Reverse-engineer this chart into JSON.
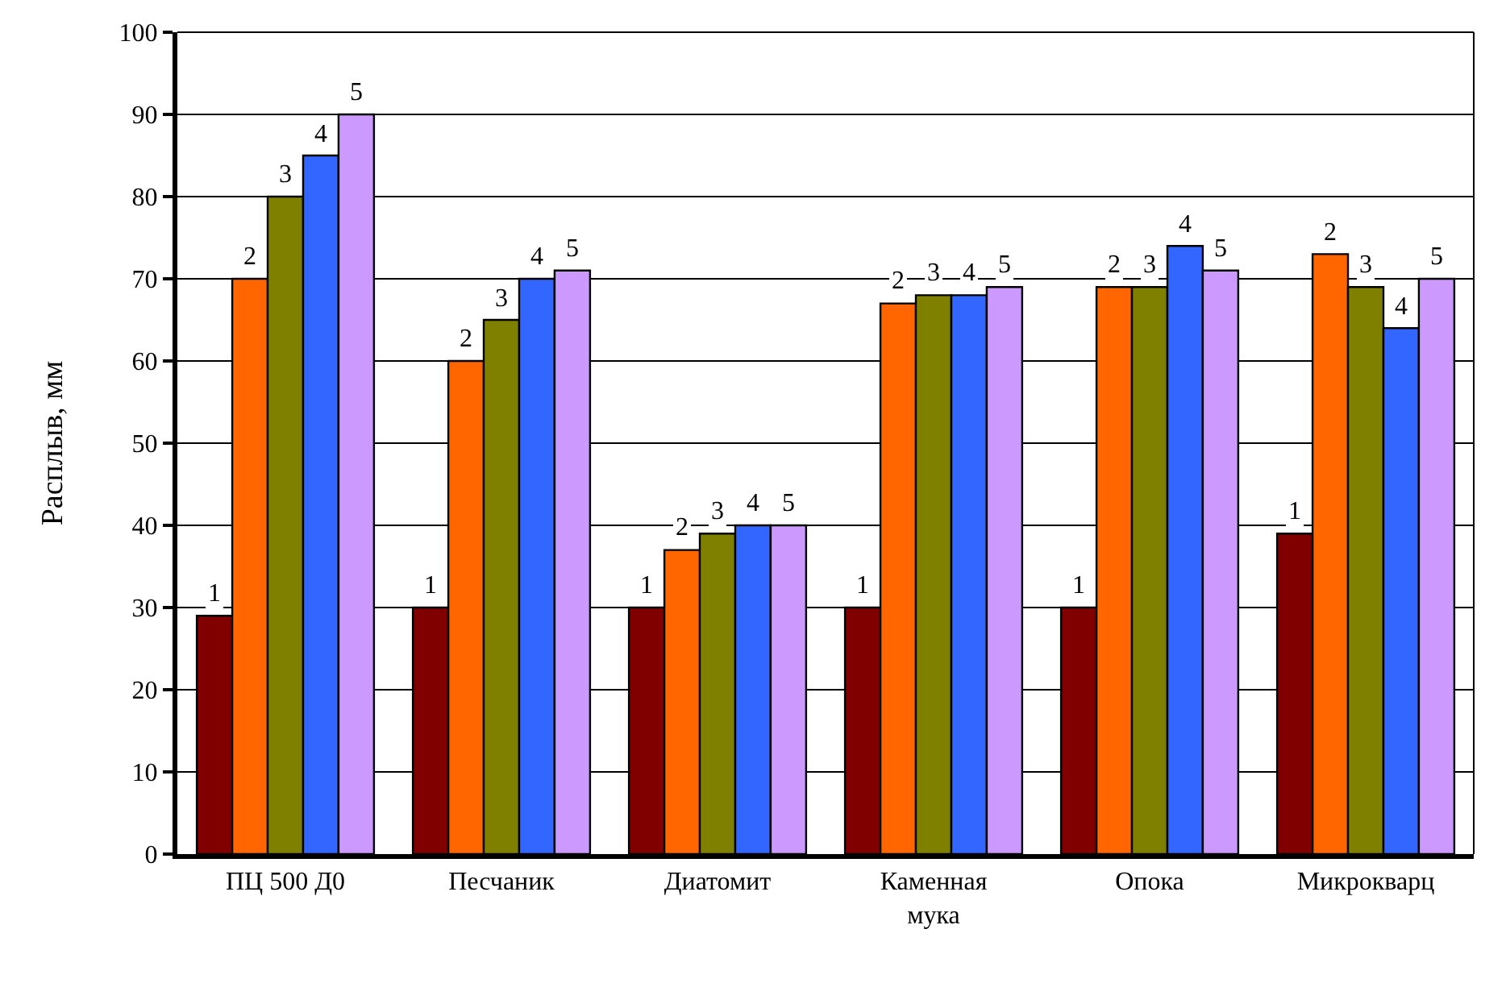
{
  "chart_data": {
    "type": "bar",
    "ylabel": "Расплыв, мм",
    "categories": [
      "ПЦ 500 Д0",
      "Песчаник",
      "Диатомит",
      "Каменная\nмука",
      "Опока",
      "Микрокварц"
    ],
    "series": [
      {
        "name": "1",
        "color": "#800000",
        "values": [
          29,
          30,
          30,
          30,
          30,
          39
        ]
      },
      {
        "name": "2",
        "color": "#ff6600",
        "values": [
          70,
          60,
          37,
          67,
          69,
          73
        ]
      },
      {
        "name": "3",
        "color": "#808000",
        "values": [
          80,
          65,
          39,
          68,
          69,
          69
        ]
      },
      {
        "name": "4",
        "color": "#3366ff",
        "values": [
          85,
          70,
          40,
          68,
          74,
          64
        ]
      },
      {
        "name": "5",
        "color": "#cc99ff",
        "values": [
          90,
          71,
          40,
          69,
          71,
          70
        ]
      }
    ],
    "ylim": [
      0,
      100
    ],
    "yticks": [
      0,
      10,
      20,
      30,
      40,
      50,
      60,
      70,
      80,
      90,
      100
    ],
    "grid": "y",
    "legend": false
  }
}
